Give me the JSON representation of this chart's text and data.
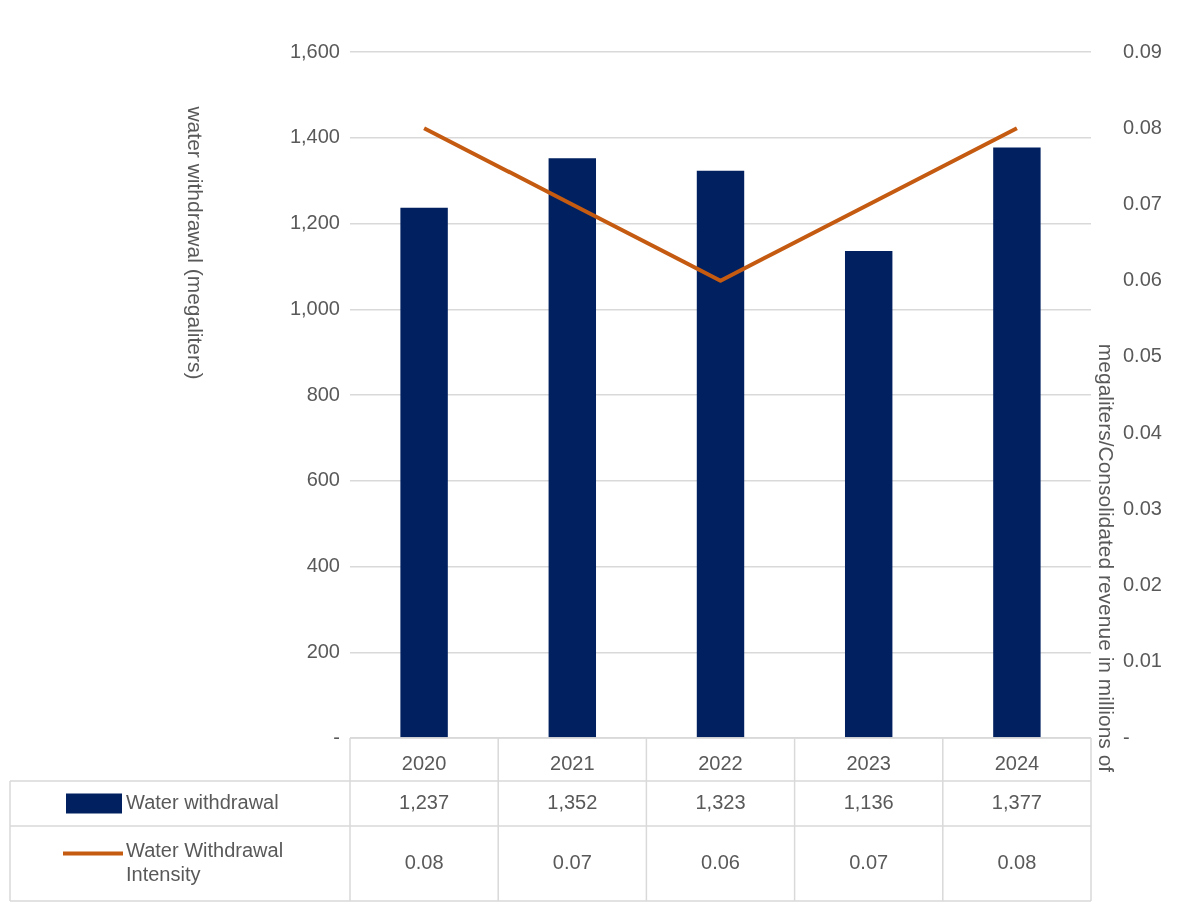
{
  "chart_data": {
    "type": "bar",
    "categories": [
      "2020",
      "2021",
      "2022",
      "2023",
      "2024"
    ],
    "series": [
      {
        "name": "Water withdrawal",
        "color": "#002060",
        "values": [
          1237,
          1352,
          1323,
          1136,
          1377
        ],
        "value_labels": [
          "1,237",
          "1,352",
          "1,323",
          "1,136",
          "1,377"
        ]
      },
      {
        "name": "Water Withdrawal Intensity",
        "type": "line",
        "axis": "y2",
        "color": "#c55a11",
        "values": [
          0.08,
          0.07,
          0.06,
          0.07,
          0.08
        ]
      }
    ],
    "ylabel": "water withdrawal (megaliters)",
    "y2label": "megaliters/Consolidated revenue in millions of",
    "ylim": [
      0,
      1600
    ],
    "yticks": [
      {
        "value": 0,
        "label": "-"
      },
      200,
      400,
      600,
      800,
      {
        "value": 1000,
        "label": "1,000"
      },
      {
        "value": 1200,
        "label": "1,200"
      },
      {
        "value": 1400,
        "label": "1,400"
      },
      {
        "value": 1600,
        "label": "1,600"
      }
    ],
    "y2lim": [
      0,
      0.09
    ],
    "y2ticks": [
      {
        "value": 0,
        "label": "-"
      },
      0.01,
      0.02,
      0.03,
      0.04,
      0.05,
      0.06,
      0.07,
      0.08,
      0.09
    ],
    "grid": "y",
    "legend": "bottom",
    "data_labels": true,
    "marker": "none"
  }
}
